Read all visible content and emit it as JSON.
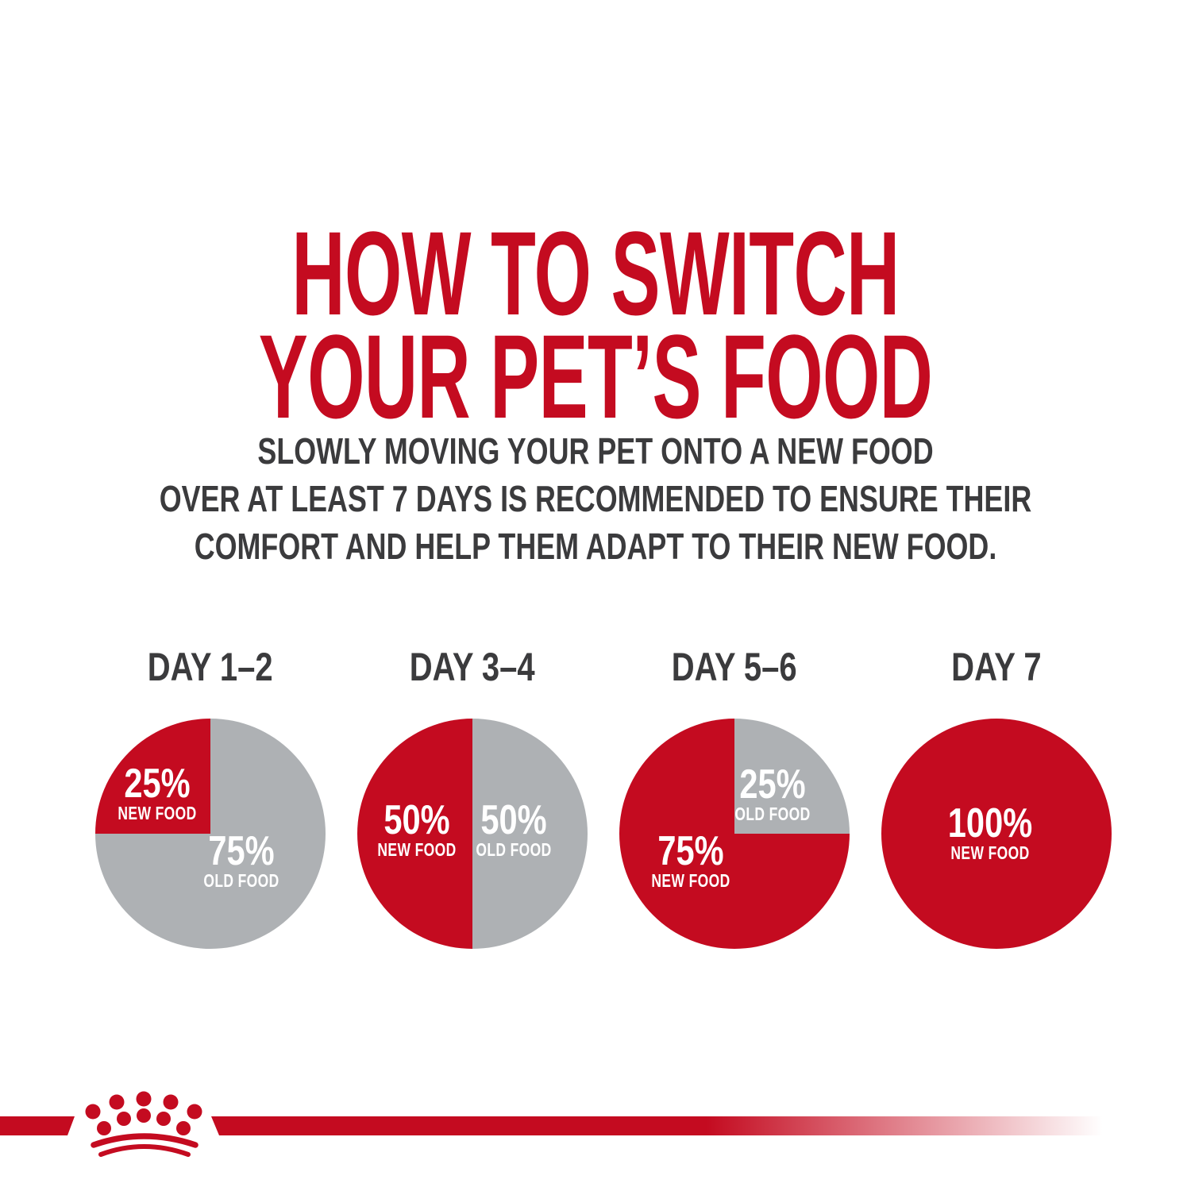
{
  "page": {
    "title_line1": "HOW TO SWITCH",
    "title_line2": "YOUR PET’S FOOD",
    "subtitle_line1": "SLOWLY MOVING YOUR PET ONTO A NEW FOOD",
    "subtitle_line2": "OVER AT LEAST 7 DAYS IS RECOMMENDED TO ENSURE THEIR",
    "subtitle_line3": "COMFORT AND HELP THEM ADAPT TO THEIR NEW FOOD."
  },
  "colors": {
    "brand_red": "#C40B20",
    "old_food_gray": "#AEB1B4",
    "text_dark": "#3B3B3D",
    "background": "#FFFFFF",
    "stat_text": "#FFFFFF"
  },
  "footer": {
    "logo": "royal-canin-crown-logo"
  },
  "chart_data": {
    "type": "pie",
    "title": "HOW TO SWITCH YOUR PET’S FOOD",
    "subtitle": "Slowly moving your pet onto a new food over at least 7 days is recommended to ensure their comfort and help them adapt to their new food.",
    "legend_position": "none",
    "labels_on_slices": true,
    "slice_colors": {
      "NEW FOOD": "#C40B20",
      "OLD FOOD": "#AEB1B4"
    },
    "charts": [
      {
        "label": "DAY 1–2",
        "start_deg": 270,
        "slices": [
          {
            "name": "NEW FOOD",
            "value": 25
          },
          {
            "name": "OLD FOOD",
            "value": 75
          }
        ]
      },
      {
        "label": "DAY 3–4",
        "start_deg": 180,
        "slices": [
          {
            "name": "NEW FOOD",
            "value": 50
          },
          {
            "name": "OLD FOOD",
            "value": 50
          }
        ]
      },
      {
        "label": "DAY 5–6",
        "start_deg": 90,
        "slices": [
          {
            "name": "NEW FOOD",
            "value": 75
          },
          {
            "name": "OLD FOOD",
            "value": 25
          }
        ]
      },
      {
        "label": "DAY 7",
        "start_deg": 0,
        "slices": [
          {
            "name": "NEW FOOD",
            "value": 100
          }
        ]
      }
    ]
  }
}
